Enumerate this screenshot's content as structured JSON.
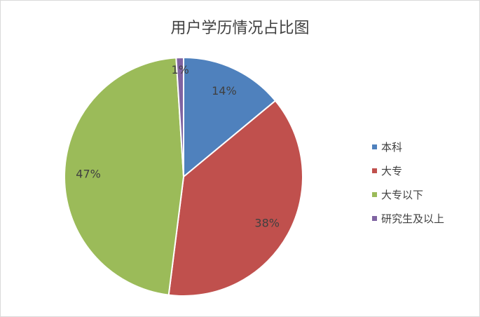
{
  "chart_data": {
    "type": "pie",
    "title": "用户学历情况占比图",
    "categories": [
      "本科",
      "大专",
      "大专以下",
      "研究生及以上"
    ],
    "values": [
      14,
      38,
      47,
      1
    ],
    "labels": [
      "14%",
      "38%",
      "47%",
      "1%"
    ],
    "colors": [
      "#4F81BD",
      "#C0504D",
      "#9BBB59",
      "#8064A2"
    ],
    "start_angle": "12 o'clock",
    "direction": "clockwise",
    "legend_position": "right"
  }
}
